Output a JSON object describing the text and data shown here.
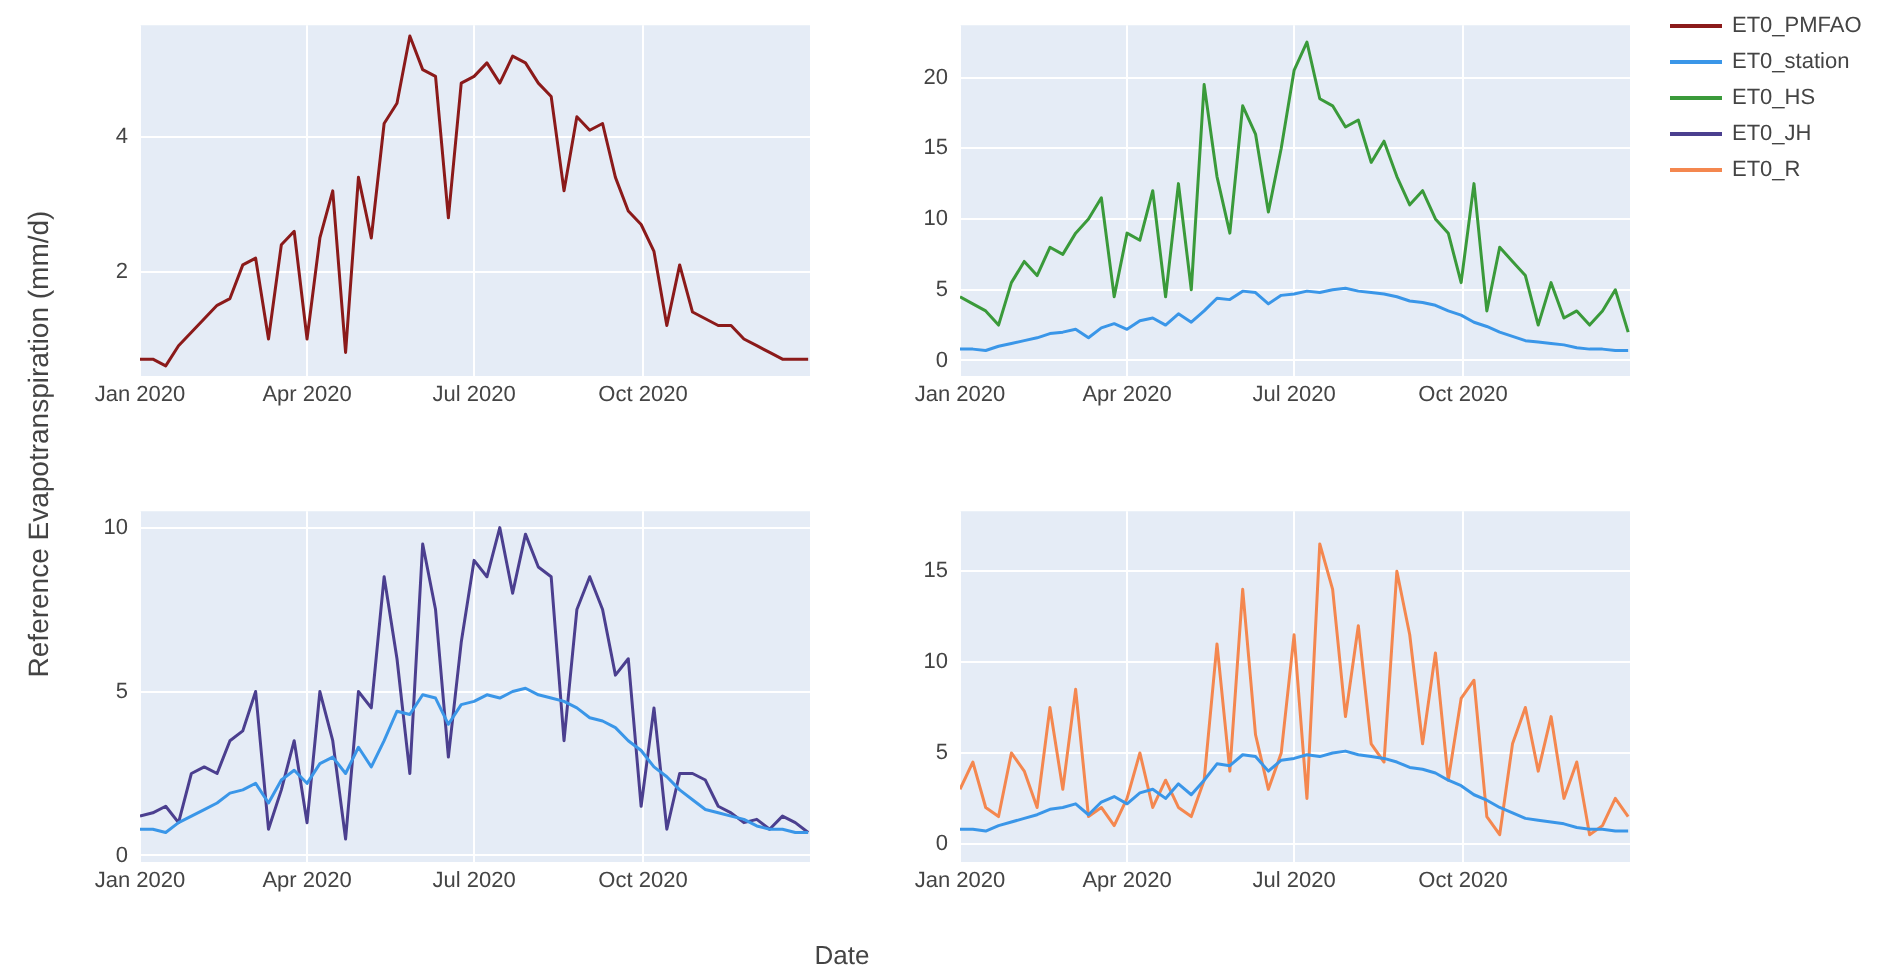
{
  "chart_data": [
    {
      "type": "line",
      "x": [
        "2020-01-01",
        "2020-01-08",
        "2020-01-15",
        "2020-01-22",
        "2020-01-29",
        "2020-02-05",
        "2020-02-12",
        "2020-02-19",
        "2020-02-26",
        "2020-03-04",
        "2020-03-11",
        "2020-03-18",
        "2020-03-25",
        "2020-04-01",
        "2020-04-08",
        "2020-04-15",
        "2020-04-22",
        "2020-04-29",
        "2020-05-06",
        "2020-05-13",
        "2020-05-20",
        "2020-05-27",
        "2020-06-03",
        "2020-06-10",
        "2020-06-17",
        "2020-06-24",
        "2020-07-01",
        "2020-07-08",
        "2020-07-15",
        "2020-07-22",
        "2020-07-29",
        "2020-08-05",
        "2020-08-12",
        "2020-08-19",
        "2020-08-26",
        "2020-09-02",
        "2020-09-09",
        "2020-09-16",
        "2020-09-23",
        "2020-09-30",
        "2020-10-07",
        "2020-10-14",
        "2020-10-21",
        "2020-10-28",
        "2020-11-04",
        "2020-11-11",
        "2020-11-18",
        "2020-11-25",
        "2020-12-02",
        "2020-12-09",
        "2020-12-16",
        "2020-12-23",
        "2020-12-30"
      ],
      "series": [
        {
          "name": "ET0_PMFAO",
          "color": "#8b1a1a",
          "values": [
            0.7,
            0.7,
            0.6,
            0.9,
            1.1,
            1.3,
            1.5,
            1.6,
            2.1,
            2.2,
            1.0,
            2.4,
            2.6,
            1.0,
            2.5,
            3.2,
            0.8,
            3.4,
            2.5,
            4.2,
            4.5,
            5.5,
            5.0,
            4.9,
            2.8,
            4.8,
            4.9,
            5.1,
            4.8,
            5.2,
            5.1,
            4.8,
            4.6,
            3.2,
            4.3,
            4.1,
            4.2,
            3.4,
            2.9,
            2.7,
            2.3,
            1.2,
            2.1,
            1.4,
            1.3,
            1.2,
            1.2,
            1.0,
            0.9,
            0.8,
            0.7,
            0.7,
            0.7
          ]
        }
      ],
      "xlim": [
        "2020-01-01",
        "2020-12-31"
      ],
      "xticks": [
        {
          "value": "2020-01-01",
          "label": "Jan 2020"
        },
        {
          "value": "2020-04-01",
          "label": "Apr 2020"
        },
        {
          "value": "2020-07-01",
          "label": "Jul 2020"
        },
        {
          "value": "2020-10-01",
          "label": "Oct 2020"
        }
      ],
      "ylim": [
        0.45,
        5.66
      ],
      "yticks": [
        2,
        4
      ],
      "grid": true
    },
    {
      "type": "line",
      "x": [
        "2020-01-01",
        "2020-01-08",
        "2020-01-15",
        "2020-01-22",
        "2020-01-29",
        "2020-02-05",
        "2020-02-12",
        "2020-02-19",
        "2020-02-26",
        "2020-03-04",
        "2020-03-11",
        "2020-03-18",
        "2020-03-25",
        "2020-04-01",
        "2020-04-08",
        "2020-04-15",
        "2020-04-22",
        "2020-04-29",
        "2020-05-06",
        "2020-05-13",
        "2020-05-20",
        "2020-05-27",
        "2020-06-03",
        "2020-06-10",
        "2020-06-17",
        "2020-06-24",
        "2020-07-01",
        "2020-07-08",
        "2020-07-15",
        "2020-07-22",
        "2020-07-29",
        "2020-08-05",
        "2020-08-12",
        "2020-08-19",
        "2020-08-26",
        "2020-09-02",
        "2020-09-09",
        "2020-09-16",
        "2020-09-23",
        "2020-09-30",
        "2020-10-07",
        "2020-10-14",
        "2020-10-21",
        "2020-10-28",
        "2020-11-04",
        "2020-11-11",
        "2020-11-18",
        "2020-11-25",
        "2020-12-02",
        "2020-12-09",
        "2020-12-16",
        "2020-12-23",
        "2020-12-30"
      ],
      "series": [
        {
          "name": "ET0_station",
          "color": "#3a96e8",
          "values": [
            0.8,
            0.8,
            0.7,
            1.0,
            1.2,
            1.4,
            1.6,
            1.9,
            2.0,
            2.2,
            1.6,
            2.3,
            2.6,
            2.2,
            2.8,
            3.0,
            2.5,
            3.3,
            2.7,
            3.5,
            4.4,
            4.3,
            4.9,
            4.8,
            4.0,
            4.6,
            4.7,
            4.9,
            4.8,
            5.0,
            5.1,
            4.9,
            4.8,
            4.7,
            4.5,
            4.2,
            4.1,
            3.9,
            3.5,
            3.2,
            2.7,
            2.4,
            2.0,
            1.7,
            1.4,
            1.3,
            1.2,
            1.1,
            0.9,
            0.8,
            0.8,
            0.7,
            0.7
          ]
        },
        {
          "name": "ET0_HS",
          "color": "#3a9a3a",
          "values": [
            4.5,
            4.0,
            3.5,
            2.5,
            5.5,
            7.0,
            6.0,
            8.0,
            7.5,
            9.0,
            10.0,
            11.5,
            4.5,
            9.0,
            8.5,
            12.0,
            4.5,
            12.5,
            5.0,
            19.5,
            13.0,
            9.0,
            18.0,
            16.0,
            10.5,
            15.0,
            20.5,
            22.5,
            18.5,
            18.0,
            16.5,
            17.0,
            14.0,
            15.5,
            13.0,
            11.0,
            12.0,
            10.0,
            9.0,
            5.5,
            12.5,
            3.5,
            8.0,
            7.0,
            6.0,
            2.5,
            5.5,
            3.0,
            3.5,
            2.5,
            3.5,
            5.0,
            2.0
          ]
        }
      ],
      "xlim": [
        "2020-01-01",
        "2020-12-31"
      ],
      "xticks": [
        {
          "value": "2020-01-01",
          "label": "Jan 2020"
        },
        {
          "value": "2020-04-01",
          "label": "Apr 2020"
        },
        {
          "value": "2020-07-01",
          "label": "Jul 2020"
        },
        {
          "value": "2020-10-01",
          "label": "Oct 2020"
        }
      ],
      "ylim": [
        -1.1,
        23.7
      ],
      "yticks": [
        0,
        5,
        10,
        15,
        20
      ],
      "grid": true,
      "legend": "right"
    },
    {
      "type": "line",
      "ylabel": "Reference Evapotranspiration (mm/d)",
      "xlabel": "Date",
      "x": [
        "2020-01-01",
        "2020-01-08",
        "2020-01-15",
        "2020-01-22",
        "2020-01-29",
        "2020-02-05",
        "2020-02-12",
        "2020-02-19",
        "2020-02-26",
        "2020-03-04",
        "2020-03-11",
        "2020-03-18",
        "2020-03-25",
        "2020-04-01",
        "2020-04-08",
        "2020-04-15",
        "2020-04-22",
        "2020-04-29",
        "2020-05-06",
        "2020-05-13",
        "2020-05-20",
        "2020-05-27",
        "2020-06-03",
        "2020-06-10",
        "2020-06-17",
        "2020-06-24",
        "2020-07-01",
        "2020-07-08",
        "2020-07-15",
        "2020-07-22",
        "2020-07-29",
        "2020-08-05",
        "2020-08-12",
        "2020-08-19",
        "2020-08-26",
        "2020-09-02",
        "2020-09-09",
        "2020-09-16",
        "2020-09-23",
        "2020-09-30",
        "2020-10-07",
        "2020-10-14",
        "2020-10-21",
        "2020-10-28",
        "2020-11-04",
        "2020-11-11",
        "2020-11-18",
        "2020-11-25",
        "2020-12-02",
        "2020-12-09",
        "2020-12-16",
        "2020-12-23",
        "2020-12-30"
      ],
      "series": [
        {
          "color": "#3a96e8",
          "values": [
            0.8,
            0.8,
            0.7,
            1.0,
            1.2,
            1.4,
            1.6,
            1.9,
            2.0,
            2.2,
            1.6,
            2.3,
            2.6,
            2.2,
            2.8,
            3.0,
            2.5,
            3.3,
            2.7,
            3.5,
            4.4,
            4.3,
            4.9,
            4.8,
            4.0,
            4.6,
            4.7,
            4.9,
            4.8,
            5.0,
            5.1,
            4.9,
            4.8,
            4.7,
            4.5,
            4.2,
            4.1,
            3.9,
            3.5,
            3.2,
            2.7,
            2.4,
            2.0,
            1.7,
            1.4,
            1.3,
            1.2,
            1.1,
            0.9,
            0.8,
            0.8,
            0.7,
            0.7
          ]
        },
        {
          "name": "ET0_JH",
          "color": "#4b3f8f",
          "values": [
            1.2,
            1.3,
            1.5,
            1.0,
            2.5,
            2.7,
            2.5,
            3.5,
            3.8,
            5.0,
            0.8,
            2.0,
            3.5,
            1.0,
            5.0,
            3.5,
            0.5,
            5.0,
            4.5,
            8.5,
            6.0,
            2.5,
            9.5,
            7.5,
            3.0,
            6.5,
            9.0,
            8.5,
            10.0,
            8.0,
            9.8,
            8.8,
            8.5,
            3.5,
            7.5,
            8.5,
            7.5,
            5.5,
            6.0,
            1.5,
            4.5,
            0.8,
            2.5,
            2.5,
            2.3,
            1.5,
            1.3,
            1.0,
            1.1,
            0.8,
            1.2,
            1.0,
            0.7
          ]
        }
      ],
      "xlim": [
        "2020-01-01",
        "2020-12-31"
      ],
      "xticks": [
        {
          "value": "2020-01-01",
          "label": "Jan 2020"
        },
        {
          "value": "2020-04-01",
          "label": "Apr 2020"
        },
        {
          "value": "2020-07-01",
          "label": "Jul 2020"
        },
        {
          "value": "2020-10-01",
          "label": "Oct 2020"
        }
      ],
      "ylim": [
        -0.2,
        10.5
      ],
      "yticks": [
        0,
        5,
        10
      ],
      "grid": true
    },
    {
      "type": "line",
      "x": [
        "2020-01-01",
        "2020-01-08",
        "2020-01-15",
        "2020-01-22",
        "2020-01-29",
        "2020-02-05",
        "2020-02-12",
        "2020-02-19",
        "2020-02-26",
        "2020-03-04",
        "2020-03-11",
        "2020-03-18",
        "2020-03-25",
        "2020-04-01",
        "2020-04-08",
        "2020-04-15",
        "2020-04-22",
        "2020-04-29",
        "2020-05-06",
        "2020-05-13",
        "2020-05-20",
        "2020-05-27",
        "2020-06-03",
        "2020-06-10",
        "2020-06-17",
        "2020-06-24",
        "2020-07-01",
        "2020-07-08",
        "2020-07-15",
        "2020-07-22",
        "2020-07-29",
        "2020-08-05",
        "2020-08-12",
        "2020-08-19",
        "2020-08-26",
        "2020-09-02",
        "2020-09-09",
        "2020-09-16",
        "2020-09-23",
        "2020-09-30",
        "2020-10-07",
        "2020-10-14",
        "2020-10-21",
        "2020-10-28",
        "2020-11-04",
        "2020-11-11",
        "2020-11-18",
        "2020-11-25",
        "2020-12-02",
        "2020-12-09",
        "2020-12-16",
        "2020-12-23",
        "2020-12-30"
      ],
      "series": [
        {
          "color": "#3a96e8",
          "values": [
            0.8,
            0.8,
            0.7,
            1.0,
            1.2,
            1.4,
            1.6,
            1.9,
            2.0,
            2.2,
            1.6,
            2.3,
            2.6,
            2.2,
            2.8,
            3.0,
            2.5,
            3.3,
            2.7,
            3.5,
            4.4,
            4.3,
            4.9,
            4.8,
            4.0,
            4.6,
            4.7,
            4.9,
            4.8,
            5.0,
            5.1,
            4.9,
            4.8,
            4.7,
            4.5,
            4.2,
            4.1,
            3.9,
            3.5,
            3.2,
            2.7,
            2.4,
            2.0,
            1.7,
            1.4,
            1.3,
            1.2,
            1.1,
            0.9,
            0.8,
            0.8,
            0.7,
            0.7
          ]
        },
        {
          "name": "ET0_R",
          "color": "#f4874f",
          "values": [
            3.0,
            4.5,
            2.0,
            1.5,
            5.0,
            4.0,
            2.0,
            7.5,
            3.0,
            8.5,
            1.5,
            2.0,
            1.0,
            2.5,
            5.0,
            2.0,
            3.5,
            2.0,
            1.5,
            3.5,
            11.0,
            4.0,
            14.0,
            6.0,
            3.0,
            5.0,
            11.5,
            2.5,
            16.5,
            14.0,
            7.0,
            12.0,
            5.5,
            4.5,
            15.0,
            11.5,
            5.5,
            10.5,
            3.5,
            8.0,
            9.0,
            1.5,
            0.5,
            5.5,
            7.5,
            4.0,
            7.0,
            2.5,
            4.5,
            0.5,
            1.0,
            2.5,
            1.5
          ]
        }
      ],
      "xlim": [
        "2020-01-01",
        "2020-12-31"
      ],
      "xticks": [
        {
          "value": "2020-01-01",
          "label": "Jan 2020"
        },
        {
          "value": "2020-04-01",
          "label": "Apr 2020"
        },
        {
          "value": "2020-07-01",
          "label": "Jul 2020"
        },
        {
          "value": "2020-10-01",
          "label": "Oct 2020"
        }
      ],
      "ylim": [
        -1,
        18.3
      ],
      "yticks": [
        0,
        5,
        10,
        15
      ],
      "grid": true
    }
  ]
}
